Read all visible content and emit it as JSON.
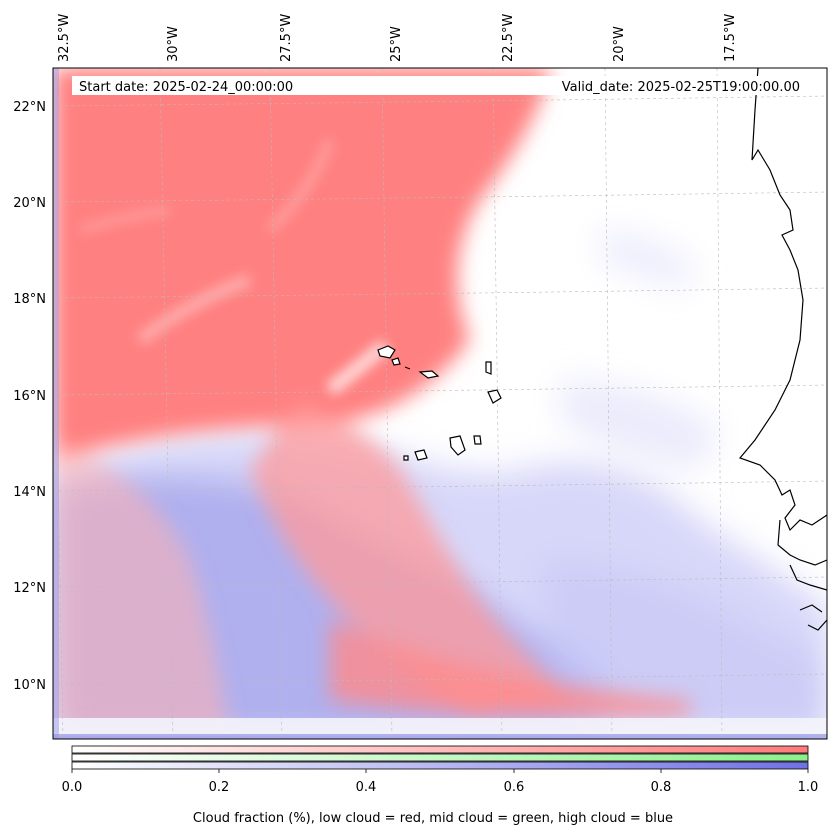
{
  "map": {
    "start_date": "Start date: 2025-02-24_00:00:00",
    "valid_date": "Valid_date: 2025-02-25T19:00:00.00",
    "lon_labels": [
      "32.5°W",
      "30°W",
      "27.5°W",
      "25°W",
      "22.5°W",
      "20°W",
      "17.5°W"
    ],
    "lat_labels": [
      "22°N",
      "20°N",
      "18°N",
      "16°N",
      "14°N",
      "12°N",
      "10°N"
    ],
    "colors": {
      "low_cloud": "#ff7a7a",
      "mid_cloud": "#8cf08c",
      "high_cloud": "#7070e6",
      "coast": "#000000",
      "grid": "#bbbbbb"
    }
  },
  "colorbar": {
    "ticks": [
      "0.0",
      "0.2",
      "0.4",
      "0.6",
      "0.8",
      "1.0"
    ],
    "title": "Cloud fraction (%), low cloud = red, mid cloud = green, high cloud = blue"
  }
}
